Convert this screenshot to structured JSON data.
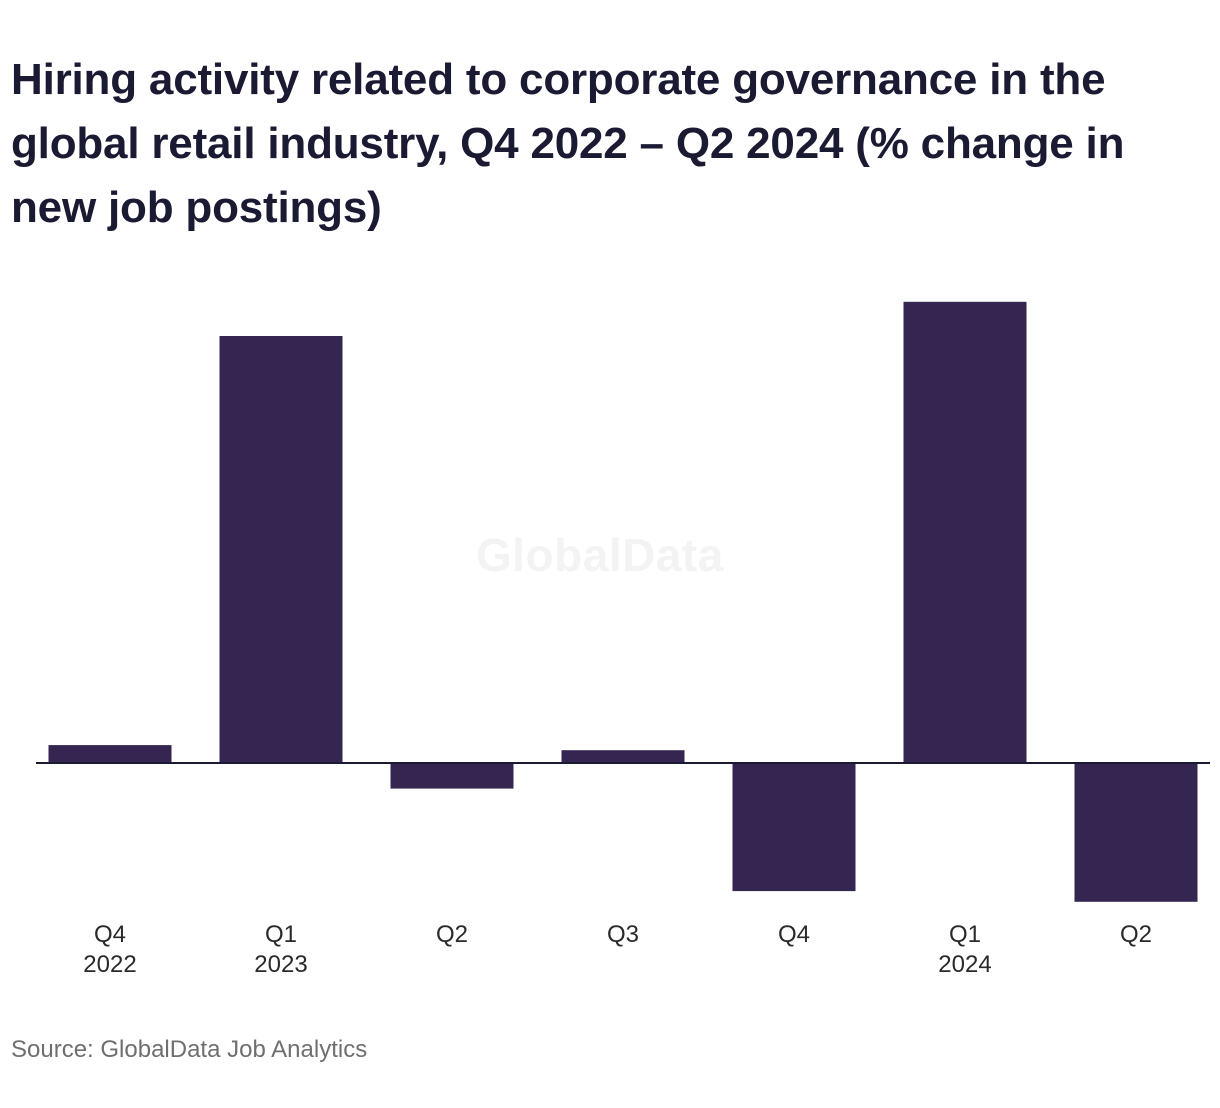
{
  "title": "Hiring activity related to corporate governance in the global retail industry, Q4 2022 – Q2 2024 (% change in new job postings)",
  "watermark": "GlobalData",
  "source": "Source: GlobalData Job Analytics",
  "colors": {
    "bar": "#352551",
    "axis": "#1b1a33",
    "title": "#1b1a33"
  },
  "chart_data": {
    "type": "bar",
    "title": "Hiring activity related to corporate governance in the global retail industry, Q4 2022 – Q2 2024 (% change in new job postings)",
    "categories": [
      [
        "Q4",
        "2022"
      ],
      [
        "Q1",
        "2023"
      ],
      [
        "Q2",
        ""
      ],
      [
        "Q3",
        ""
      ],
      [
        "Q4",
        ""
      ],
      [
        "Q1",
        "2024"
      ],
      [
        "Q2",
        ""
      ]
    ],
    "values": [
      4.2,
      100,
      -6.0,
      3.0,
      -30.0,
      108,
      -32.5
    ],
    "xlabel": "",
    "ylabel": "",
    "ylim": [
      -40,
      120
    ],
    "grid": false,
    "legend": "none"
  }
}
